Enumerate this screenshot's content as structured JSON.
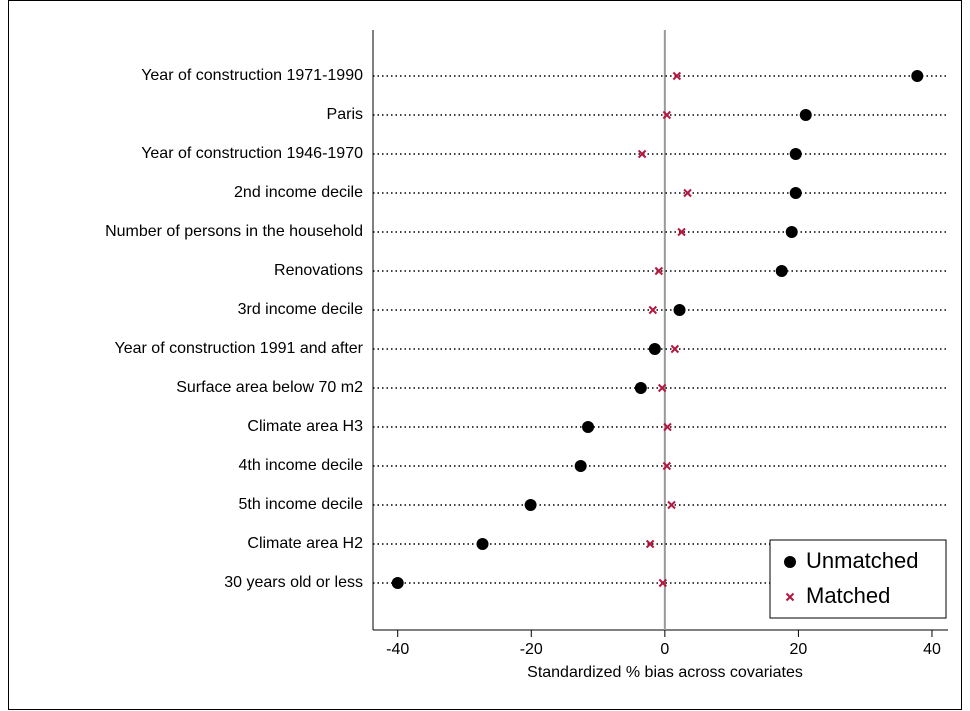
{
  "chart_data": {
    "type": "dot",
    "categories": [
      "Year of construction 1971-1990",
      "Paris",
      "Year of construction 1946-1970",
      "2nd income decile",
      "Number of persons in the household",
      "Renovations",
      "3rd income decile",
      "Year of construction 1991 and after",
      "Surface area below 70 m2",
      "Climate area H3",
      "4th income decile",
      "5th income decile",
      "Climate area H2",
      "30 years old or less"
    ],
    "series": [
      {
        "name": "Unmatched",
        "color": "#000000",
        "values": [
          37.8,
          21.1,
          19.6,
          19.6,
          19.0,
          17.5,
          2.2,
          -1.5,
          -3.6,
          -11.5,
          -12.6,
          -20.1,
          -27.3,
          -40.0
        ]
      },
      {
        "name": "Matched",
        "color": "#b5173f",
        "values": [
          1.8,
          0.3,
          -3.4,
          3.4,
          2.5,
          -0.9,
          -1.8,
          1.5,
          -0.4,
          0.4,
          0.3,
          1.0,
          -2.2,
          -0.3
        ]
      }
    ],
    "xlabel": "Standardized % bias across covariates",
    "xlim": [
      -43.7,
      42.4
    ],
    "xticks": [
      -40,
      -20,
      0,
      20,
      40
    ],
    "legend": "lower right"
  }
}
